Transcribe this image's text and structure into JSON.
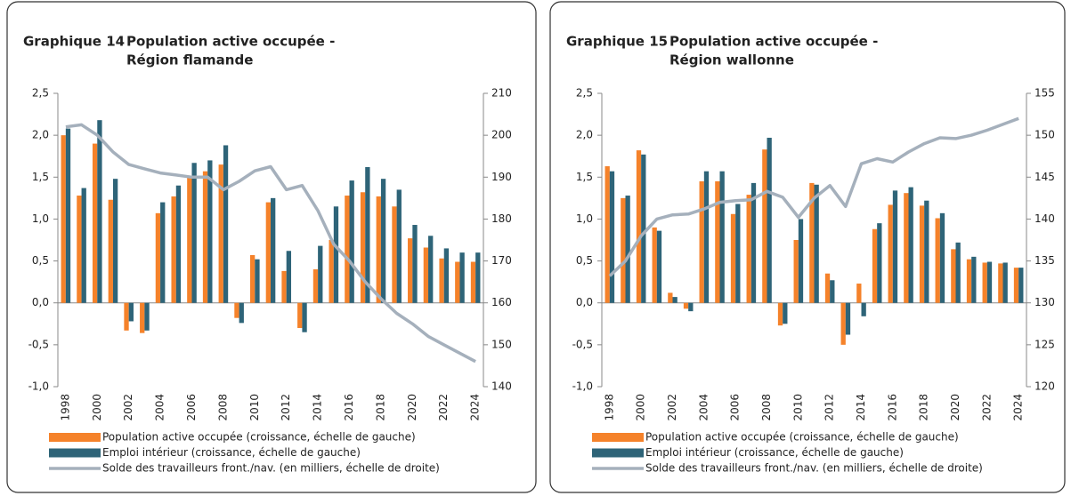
{
  "chart_data": [
    {
      "type": "bar_line",
      "label": "Graphique 14",
      "title": [
        "Population active occupée -",
        "Région flamande"
      ],
      "categories": [
        "1998",
        null,
        "2000",
        null,
        "2002",
        null,
        "2004",
        null,
        "2006",
        null,
        "2008",
        null,
        "2010",
        null,
        "2012",
        null,
        "2014",
        null,
        "2016",
        null,
        "2018",
        null,
        "2020",
        null,
        "2022",
        null,
        "2024"
      ],
      "series": [
        {
          "name": "Population active occupée (croissance, échelle de gauche)",
          "color": "#f5822a",
          "kind": "bar",
          "values": [
            2.0,
            1.28,
            1.9,
            1.23,
            -0.33,
            -0.36,
            1.07,
            1.27,
            1.5,
            1.57,
            1.65,
            -0.18,
            0.57,
            1.2,
            0.38,
            -0.3,
            0.4,
            0.75,
            1.28,
            1.32,
            1.27,
            1.15,
            0.77,
            0.66,
            0.53,
            0.49,
            0.49
          ]
        },
        {
          "name": "Emploi intérieur (croissance, échelle de gauche)",
          "color": "#2e6478",
          "kind": "bar",
          "values": [
            2.08,
            1.37,
            2.18,
            1.48,
            -0.22,
            -0.33,
            1.2,
            1.4,
            1.67,
            1.7,
            1.88,
            -0.24,
            0.52,
            1.25,
            0.62,
            -0.35,
            0.68,
            1.15,
            1.46,
            1.62,
            1.48,
            1.35,
            0.93,
            0.8,
            0.65,
            0.6,
            0.6
          ]
        },
        {
          "name": "Solde des travailleurs front./nav. (en milliers, échelle de droite)",
          "color": "#a5b0bc",
          "kind": "line",
          "axis": "y2",
          "values": [
            202,
            202.5,
            200,
            196,
            193,
            192,
            191,
            190.5,
            190,
            190,
            187,
            189,
            191.5,
            192.5,
            187,
            188,
            182,
            174,
            170,
            165,
            161,
            157.5,
            155,
            152,
            150,
            148,
            146
          ]
        }
      ],
      "ylim": [
        -1,
        2.5
      ],
      "yticks": [
        {
          "value": -1,
          "label": "-1,0"
        },
        {
          "value": -0.5,
          "label": "-0,5"
        },
        {
          "value": 0,
          "label": "0,0"
        },
        {
          "value": 0.5,
          "label": "0,5"
        },
        {
          "value": 1,
          "label": "1,0"
        },
        {
          "value": 1.5,
          "label": "1,5"
        },
        {
          "value": 2,
          "label": "2,0"
        },
        {
          "value": 2.5,
          "label": "2,5"
        }
      ],
      "y2lim": [
        140,
        210
      ],
      "y2ticks": [
        140,
        150,
        160,
        170,
        180,
        190,
        200,
        210
      ],
      "grid": false
    },
    {
      "type": "bar_line",
      "label": "Graphique 15",
      "title": [
        "Population active occupée -",
        "Région wallonne"
      ],
      "categories": [
        "1998",
        null,
        "2000",
        null,
        "2002",
        null,
        "2004",
        null,
        "2006",
        null,
        "2008",
        null,
        "2010",
        null,
        "2012",
        null,
        "2014",
        null,
        "2016",
        null,
        "2018",
        null,
        "2020",
        null,
        "2022",
        null,
        "2024"
      ],
      "series": [
        {
          "name": "Population active occupée (croissance, échelle de gauche)",
          "color": "#f5822a",
          "kind": "bar",
          "values": [
            1.63,
            1.25,
            1.82,
            0.9,
            0.12,
            -0.07,
            1.45,
            1.45,
            1.06,
            1.29,
            1.83,
            -0.27,
            0.75,
            1.43,
            0.35,
            -0.5,
            0.23,
            0.88,
            1.17,
            1.31,
            1.16,
            1.01,
            0.64,
            0.52,
            0.48,
            0.47,
            0.42
          ]
        },
        {
          "name": "Emploi intérieur (croissance, échelle de gauche)",
          "color": "#2e6478",
          "kind": "bar",
          "values": [
            1.57,
            1.28,
            1.77,
            0.86,
            0.07,
            -0.1,
            1.57,
            1.57,
            1.18,
            1.43,
            1.97,
            -0.25,
            1.0,
            1.41,
            0.27,
            -0.38,
            -0.16,
            0.95,
            1.34,
            1.38,
            1.22,
            1.07,
            0.72,
            0.55,
            0.49,
            0.48,
            0.42
          ]
        },
        {
          "name": "Solde des travailleurs front./nav. (en milliers, échelle de droite)",
          "color": "#a5b0bc",
          "kind": "line",
          "axis": "y2",
          "values": [
            133.2,
            135,
            138,
            140,
            140.5,
            140.6,
            141.2,
            142,
            142.2,
            142.3,
            143.3,
            142.6,
            140.2,
            142.5,
            144,
            141.5,
            146.6,
            147.2,
            146.8,
            148,
            149,
            149.7,
            149.6,
            150,
            150.6,
            151.3,
            152
          ]
        }
      ],
      "ylim": [
        -1,
        2.5
      ],
      "yticks": [
        {
          "value": -1,
          "label": "-1,0"
        },
        {
          "value": -0.5,
          "label": "-0,5"
        },
        {
          "value": 0,
          "label": "0,0"
        },
        {
          "value": 0.5,
          "label": "0,5"
        },
        {
          "value": 1,
          "label": "1,0"
        },
        {
          "value": 1.5,
          "label": "1,5"
        },
        {
          "value": 2,
          "label": "2,0"
        },
        {
          "value": 2.5,
          "label": "2,5"
        }
      ],
      "y2lim": [
        120,
        155
      ],
      "y2ticks": [
        120,
        125,
        130,
        135,
        140,
        145,
        150,
        155
      ],
      "grid": false
    }
  ]
}
